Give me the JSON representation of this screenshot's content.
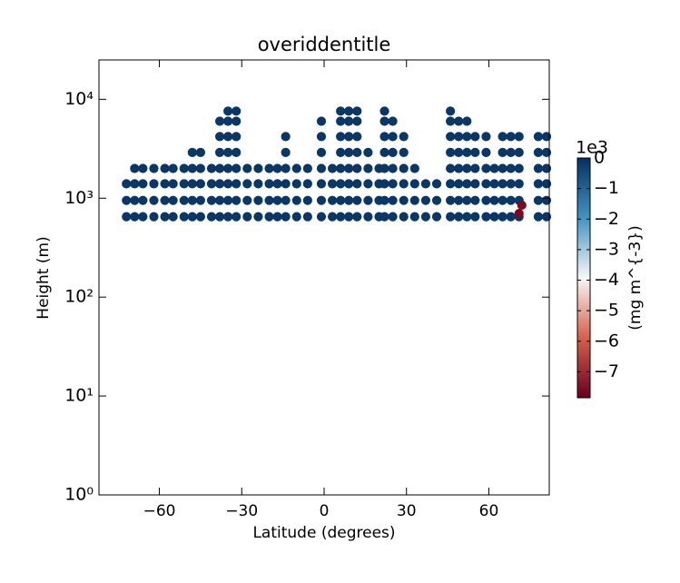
{
  "chart_data": {
    "type": "scatter",
    "title": "overiddentitle",
    "xlabel": "Latitude (degrees)",
    "ylabel": "Height (m)",
    "xlim": [
      -82,
      82
    ],
    "xticks": [
      {
        "value": -60,
        "label": "−60"
      },
      {
        "value": -30,
        "label": "−30"
      },
      0,
      30,
      60
    ],
    "ylim": [
      1,
      25000
    ],
    "yscale": "log",
    "yticks": [
      {
        "value": 1,
        "label": "10⁰"
      },
      {
        "value": 10,
        "label": "10¹"
      },
      {
        "value": 100,
        "label": "10²"
      },
      {
        "value": 1000,
        "label": "10³"
      },
      {
        "value": 10000,
        "label": "10⁴"
      }
    ],
    "series": [
      {
        "color": "#0b3767",
        "x": [
          -72,
          -72,
          -72,
          -69,
          -69,
          -69,
          -69,
          -66,
          -66,
          -66,
          -66,
          -62,
          -62,
          -62,
          -62,
          -58,
          -58,
          -58,
          -58,
          -55,
          -55,
          -55,
          -55,
          -51,
          -51,
          -51,
          -51,
          -48,
          -48,
          -48,
          -48,
          -48,
          -45,
          -45,
          -45,
          -45,
          -45,
          -41,
          -41,
          -41,
          -41,
          -38,
          -38,
          -38,
          -38,
          -38,
          -38,
          -38,
          -35,
          -35,
          -35,
          -35,
          -35,
          -35,
          -35,
          -35,
          -32,
          -32,
          -32,
          -32,
          -32,
          -32,
          -32,
          -32,
          -28,
          -28,
          -28,
          -28,
          -24,
          -24,
          -24,
          -24,
          -20,
          -20,
          -20,
          -20,
          -17,
          -17,
          -17,
          -17,
          -14,
          -14,
          -14,
          -14,
          -14,
          -14,
          -10,
          -10,
          -10,
          -10,
          -6,
          -6,
          -6,
          -6,
          -1,
          -1,
          -1,
          -1,
          -1,
          -1,
          -1,
          3,
          3,
          3,
          3,
          6,
          6,
          6,
          6,
          6,
          6,
          6,
          6,
          9,
          9,
          9,
          9,
          9,
          9,
          9,
          9,
          12,
          12,
          12,
          12,
          12,
          12,
          12,
          12,
          16,
          16,
          16,
          16,
          16,
          20,
          20,
          20,
          20,
          22,
          22,
          22,
          22,
          22,
          22,
          22,
          22,
          25,
          25,
          25,
          25,
          25,
          25,
          25,
          29,
          29,
          29,
          29,
          29,
          29,
          33,
          33,
          33,
          33,
          37,
          37,
          37,
          41,
          41,
          41,
          46,
          46,
          46,
          46,
          46,
          46,
          46,
          46,
          49,
          49,
          49,
          49,
          49,
          49,
          49,
          52,
          52,
          52,
          52,
          52,
          52,
          52,
          55,
          55,
          55,
          55,
          55,
          55,
          59,
          59,
          59,
          59,
          59,
          59,
          62,
          62,
          62,
          62,
          65,
          65,
          65,
          65,
          65,
          65,
          68,
          68,
          68,
          68,
          68,
          68,
          71,
          71,
          71,
          71,
          71,
          71,
          78,
          78,
          78,
          78,
          78,
          78,
          81,
          81,
          81,
          81,
          81,
          81
        ],
        "y": [
          650,
          950,
          1400,
          650,
          950,
          1400,
          2000,
          650,
          950,
          1400,
          2000,
          650,
          950,
          1400,
          2000,
          650,
          950,
          1400,
          2000,
          650,
          950,
          1400,
          2000,
          650,
          950,
          1400,
          2000,
          650,
          950,
          1400,
          2000,
          2900,
          650,
          950,
          1400,
          2000,
          2900,
          650,
          950,
          1400,
          2000,
          650,
          950,
          1400,
          2000,
          2900,
          4200,
          6000,
          650,
          950,
          1400,
          2000,
          2900,
          4200,
          6000,
          7600,
          650,
          950,
          1400,
          2000,
          2900,
          4200,
          6000,
          7600,
          650,
          950,
          1400,
          2000,
          650,
          950,
          1400,
          2000,
          650,
          950,
          1400,
          2000,
          650,
          950,
          1400,
          2000,
          650,
          950,
          1400,
          2000,
          2900,
          4200,
          650,
          950,
          1400,
          2000,
          650,
          950,
          1400,
          2000,
          650,
          950,
          1400,
          2000,
          2900,
          4200,
          6000,
          650,
          950,
          1400,
          2000,
          650,
          950,
          1400,
          2000,
          2900,
          4200,
          6000,
          7600,
          650,
          950,
          1400,
          2000,
          2900,
          4200,
          6000,
          7600,
          650,
          950,
          1400,
          2000,
          2900,
          4200,
          6000,
          7600,
          650,
          950,
          1400,
          2000,
          2900,
          650,
          950,
          1400,
          2000,
          650,
          950,
          1400,
          2000,
          2900,
          4200,
          6000,
          7600,
          650,
          950,
          1400,
          2000,
          2900,
          4200,
          6000,
          650,
          950,
          1400,
          2000,
          2900,
          4200,
          650,
          950,
          1400,
          2000,
          650,
          950,
          1400,
          650,
          950,
          1400,
          650,
          950,
          1400,
          2000,
          2900,
          4200,
          6000,
          7600,
          650,
          950,
          1400,
          2000,
          2900,
          4200,
          6000,
          650,
          950,
          1400,
          2000,
          2900,
          4200,
          6000,
          650,
          950,
          1400,
          2000,
          2900,
          4200,
          650,
          950,
          1400,
          2000,
          2900,
          4200,
          650,
          950,
          1400,
          2000,
          650,
          950,
          1400,
          2000,
          2900,
          4200,
          650,
          950,
          1400,
          2000,
          2900,
          4200,
          650,
          950,
          1400,
          2000,
          2900,
          4200,
          650,
          950,
          1400,
          2000,
          2900,
          4200,
          650,
          950,
          1400,
          2000,
          2900,
          4200
        ]
      },
      {
        "color": "#7a0a20",
        "x": [
          71,
          72
        ],
        "y": [
          700,
          850
        ]
      }
    ],
    "colorbar": {
      "label": "(mg m^{-3})",
      "offset_label": "1e3",
      "clim": [
        -7.85,
        0
      ],
      "ticks": [
        0,
        {
          "value": -1,
          "label": "−1"
        },
        {
          "value": -2,
          "label": "−2"
        },
        {
          "value": -3,
          "label": "−3"
        },
        {
          "value": -4,
          "label": "−4"
        },
        {
          "value": -5,
          "label": "−5"
        },
        {
          "value": -6,
          "label": "−6"
        },
        {
          "value": -7,
          "label": "−7"
        }
      ],
      "colors": [
        "#053061",
        "#4393c3",
        "#f7f7f7",
        "#d6604d",
        "#67001f"
      ]
    }
  }
}
